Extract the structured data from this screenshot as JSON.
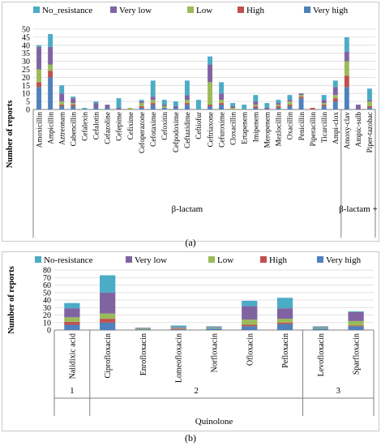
{
  "colors": {
    "No_resistance": "#4bacc6",
    "Very low": "#8064a2",
    "Low": "#9bbb59",
    "High": "#c0504d",
    "Very high": "#4f81bd"
  },
  "labels": {
    "a": "(a)",
    "b": "(b)"
  },
  "chart_data": [
    {
      "type": "bar",
      "stacked": true,
      "ylabel": "Number of reports",
      "ylim": [
        0,
        50
      ],
      "yticks": [
        0,
        5,
        10,
        15,
        20,
        25,
        30,
        35,
        40,
        45,
        50
      ],
      "legend": [
        "No_resistance",
        "Very low",
        "Low",
        "High",
        "Very high"
      ],
      "legend_position": "top",
      "categories": [
        "Amoxicillin",
        "Ampicillin",
        "Aztreonam",
        "Cabencillin",
        "Cefalexin",
        "Cefalotin",
        "Cefazoline",
        "Cefepime",
        "Cefixime",
        "Cefoperazone",
        "Cefotaxime",
        "Cefoxitin",
        "Cefpodoxime",
        "Ceftazidime",
        "Ceftiofur",
        "Ceftriaxone",
        "Cefuroxime",
        "Cloxacillin",
        "Ertapenem",
        "Imipenem",
        "Meropenem",
        "Mezlocillin",
        "Oxacillin",
        "Penicillin",
        "Piperacillin",
        "Ticarcillin",
        "Ampi-clox",
        "Amoxy-clav",
        "Ampic-sulb",
        "Piper-tazobac"
      ],
      "groups": [
        {
          "label": "β-lactam",
          "start": 0,
          "end": 26
        },
        {
          "label": "β-lactam +",
          "start": 27,
          "end": 29
        }
      ],
      "series": [
        {
          "name": "Very high",
          "values": [
            14,
            20,
            2,
            2,
            0,
            1,
            1,
            0,
            0,
            1,
            3,
            1,
            1,
            3,
            0,
            2,
            3,
            0,
            0,
            1,
            0,
            1,
            2,
            7,
            0,
            2,
            5,
            14,
            0,
            1
          ]
        },
        {
          "name": "High",
          "values": [
            3,
            4,
            1,
            1,
            0,
            0,
            0,
            0,
            0,
            1,
            1,
            0,
            0,
            1,
            0,
            1,
            1,
            0,
            0,
            1,
            0,
            1,
            1,
            1,
            1,
            1,
            2,
            7,
            0,
            1
          ]
        },
        {
          "name": "Low",
          "values": [
            8,
            4,
            2,
            1,
            0,
            0,
            0,
            0,
            1,
            2,
            2,
            1,
            0,
            2,
            0,
            14,
            2,
            1,
            0,
            1,
            0,
            1,
            2,
            1,
            0,
            1,
            2,
            9,
            0,
            3
          ]
        },
        {
          "name": "Very low",
          "values": [
            14,
            11,
            5,
            3,
            0,
            3,
            2,
            1,
            0,
            1,
            2,
            1,
            1,
            3,
            0,
            11,
            4,
            1,
            0,
            2,
            1,
            1,
            1,
            1,
            0,
            2,
            5,
            6,
            3,
            1
          ]
        },
        {
          "name": "No_resistance",
          "values": [
            1,
            8,
            5,
            1,
            1,
            1,
            0,
            6,
            0,
            1,
            10,
            3,
            3,
            9,
            6,
            5,
            7,
            2,
            3,
            4,
            3,
            2,
            3,
            0,
            0,
            3,
            4,
            9,
            0,
            7
          ]
        }
      ]
    },
    {
      "type": "bar",
      "stacked": true,
      "ylabel": "Number of reports",
      "ylim": [
        0,
        80
      ],
      "yticks": [
        0,
        10,
        20,
        30,
        40,
        50,
        60,
        70,
        80
      ],
      "legend": [
        "No-resistance",
        "Very low",
        "Low",
        "High",
        "Very high"
      ],
      "legend_position": "top",
      "categories": [
        "Nalidixic acid",
        "Ciprofloxacin",
        "Enrofloxacin",
        "Lomeofloxacin",
        "Norfloxacin",
        "Ofloxacin",
        "Pefloxacin",
        "Levofloxacin",
        "Sparfloxacin"
      ],
      "generation_groups": [
        {
          "label": "1",
          "start": 0,
          "end": 0
        },
        {
          "label": "2",
          "start": 1,
          "end": 6
        },
        {
          "label": "3",
          "start": 7,
          "end": 8
        }
      ],
      "family_label": "Quinolone",
      "series": [
        {
          "name": "Very high",
          "values": [
            7,
            10,
            1,
            1,
            2,
            5,
            8,
            2,
            5
          ]
        },
        {
          "name": "High",
          "values": [
            4,
            5,
            0,
            1,
            0,
            2,
            2,
            0,
            1
          ]
        },
        {
          "name": "Low",
          "values": [
            6,
            7,
            1,
            1,
            1,
            7,
            5,
            1,
            6
          ]
        },
        {
          "name": "Very low",
          "values": [
            12,
            28,
            1,
            1,
            1,
            18,
            14,
            1,
            12
          ]
        },
        {
          "name": "No-resistance",
          "values": [
            7,
            23,
            0,
            2,
            1,
            7,
            14,
            1,
            1
          ]
        }
      ]
    }
  ]
}
